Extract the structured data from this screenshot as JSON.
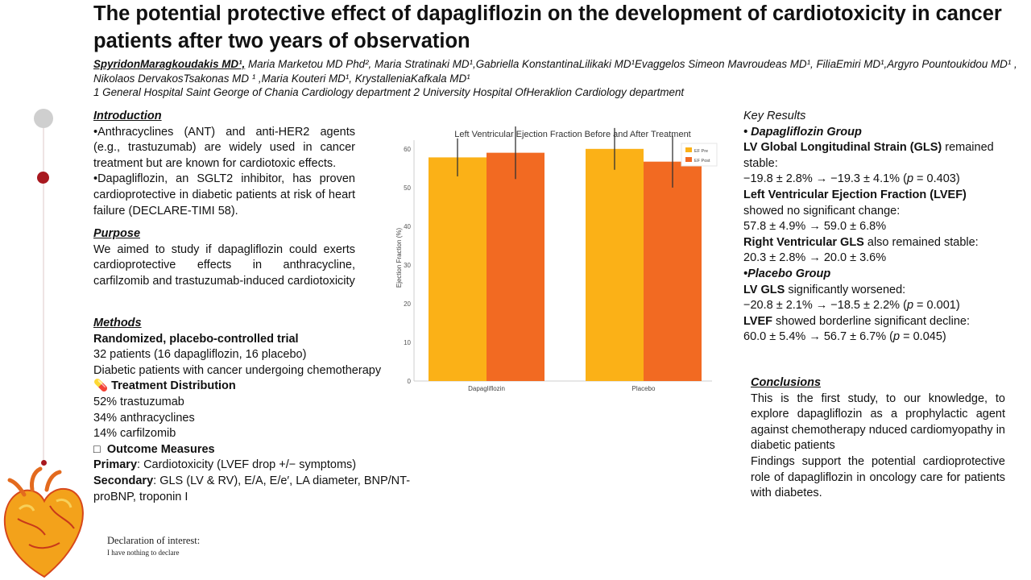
{
  "title": "The potential protective effect of dapagliflozin  on the development of cardiotoxicity in cancer patients after two years of observation",
  "authors": {
    "first": "SpyridonMaragkoudakis MD¹,",
    "rest": " Maria Marketou MD Phd², Maria Stratinaki MD¹,Gabriella KonstantinaLilikaki MD¹Evaggelos Simeon Mavroudeas MD¹, FiliaEmiri MD¹,Argyro Pountoukidou MD¹ , Nikolaos DervakosTsakonas MD ¹ ,Maria Kouteri MD¹, KrystalleniaKafkala MD¹"
  },
  "affiliations": "1 General Hospital Saint George of Chania Cardiology department 2 University Hospital OfHeraklion Cardiology department",
  "introduction": {
    "heading": "Introduction",
    "p1": "•Anthracyclines (ANT) and anti-HER2 agents (e.g., trastuzumab) are widely used in cancer treatment but are known for cardiotoxic effects.",
    "p2": "•Dapagliflozin, an SGLT2 inhibitor, has proven cardioprotective in diabetic patients at risk of heart failure (DECLARE-TIMI 58)."
  },
  "purpose": {
    "heading": "Purpose",
    "text": " We aimed to study if dapagliflozin could exerts cardioprotective effects in anthracycline, carfilzomib and trastuzumab-induced cardiotoxicity"
  },
  "methods": {
    "heading": "Methods",
    "design": "Randomized, placebo-controlled trial",
    "patients": "32 patients (16 dapagliflozin, 16 placebo)",
    "population": "Diabetic patients with cancer undergoing chemotherapy",
    "dist_icon": "💊",
    "dist_heading": "Treatment Distribution",
    "dist": [
      "52% trastuzumab",
      "34% anthracyclines",
      "14% carfilzomib"
    ],
    "outcome_icon": "□",
    "outcome_heading": "Outcome Measures",
    "primary_label": "Primary",
    "primary_text": ": Cardiotoxicity (LVEF drop +/− symptoms)",
    "secondary_label": "Secondary",
    "secondary_text": ": GLS (LV & RV), E/A, E/e′, LA diameter, BNP/NT-proBNP, troponin I"
  },
  "key_results": {
    "heading": "Key Results",
    "dapa_group": "• Dapagliflozin Group",
    "gls_bold": "LV Global Longitudinal Strain (GLS)",
    "gls_text": " remained stable:",
    "gls_values": "−19.8 ± 2.8% → −19.3 ± 4.1% (",
    "gls_p": "p",
    "gls_pval": " = 0.403)",
    "lvef_bold": "Left Ventricular Ejection Fraction (LVEF)",
    "lvef_text": "showed no significant change:",
    "lvef_values": "57.8 ± 4.9% → 59.0 ± 6.8%",
    "rv_bold": "Right Ventricular GLS",
    "rv_text": " also remained stable:",
    "rv_values": "20.3 ± 2.8% → 20.0 ± 3.6%",
    "placebo_group": "•Placebo Group",
    "pl_gls_bold": "LV GLS",
    "pl_gls_text": " significantly worsened:",
    "pl_gls_values": "−20.8 ± 2.1% → −18.5 ± 2.2% (",
    "pl_gls_p": "p",
    "pl_gls_pval": " = 0.001)",
    "pl_lvef_bold": "LVEF",
    "pl_lvef_text": " showed borderline significant decline:",
    "pl_lvef_values": "60.0 ± 5.4% → 56.7 ± 6.7% (",
    "pl_lvef_p": "p",
    "pl_lvef_pval": " = 0.045)"
  },
  "conclusions": {
    "heading": "Conclusions",
    "p1": "This is the first study, to our knowledge, to explore dapagliflozin as a prophylactic agent against chemotherapy nduced cardiomyopathy in diabetic patients",
    "p2": "Findings support the potential cardioprotective role of dapagliflozin in oncology care for patients with diabetes."
  },
  "declaration": {
    "title": "Declaration of interest:",
    "text": "I have nothing to declare"
  },
  "colors": {
    "title_dot_gray": "#cfcfcf",
    "dot_red": "#a8181f",
    "bar_pre": "#fbb117",
    "bar_post": "#f26a22"
  },
  "chart_data": {
    "type": "bar",
    "title": "Left Ventricular Ejection Fraction Before and After Treatment",
    "ylabel": "Ejection Fraction (%)",
    "xlabel": "",
    "categories": [
      "Dapagliflozin",
      "Placebo"
    ],
    "series": [
      {
        "name": "EF Pre",
        "values": [
          57.8,
          60.0
        ],
        "errors": [
          4.9,
          5.4
        ],
        "color": "#fbb117"
      },
      {
        "name": "EF Post",
        "values": [
          59.0,
          56.7
        ],
        "errors": [
          6.8,
          6.7
        ],
        "color": "#f26a22"
      }
    ],
    "yticks": [
      0,
      10,
      20,
      30,
      40,
      50,
      60
    ],
    "ylim": [
      0,
      66
    ],
    "grid": false,
    "legend": "top-right"
  }
}
